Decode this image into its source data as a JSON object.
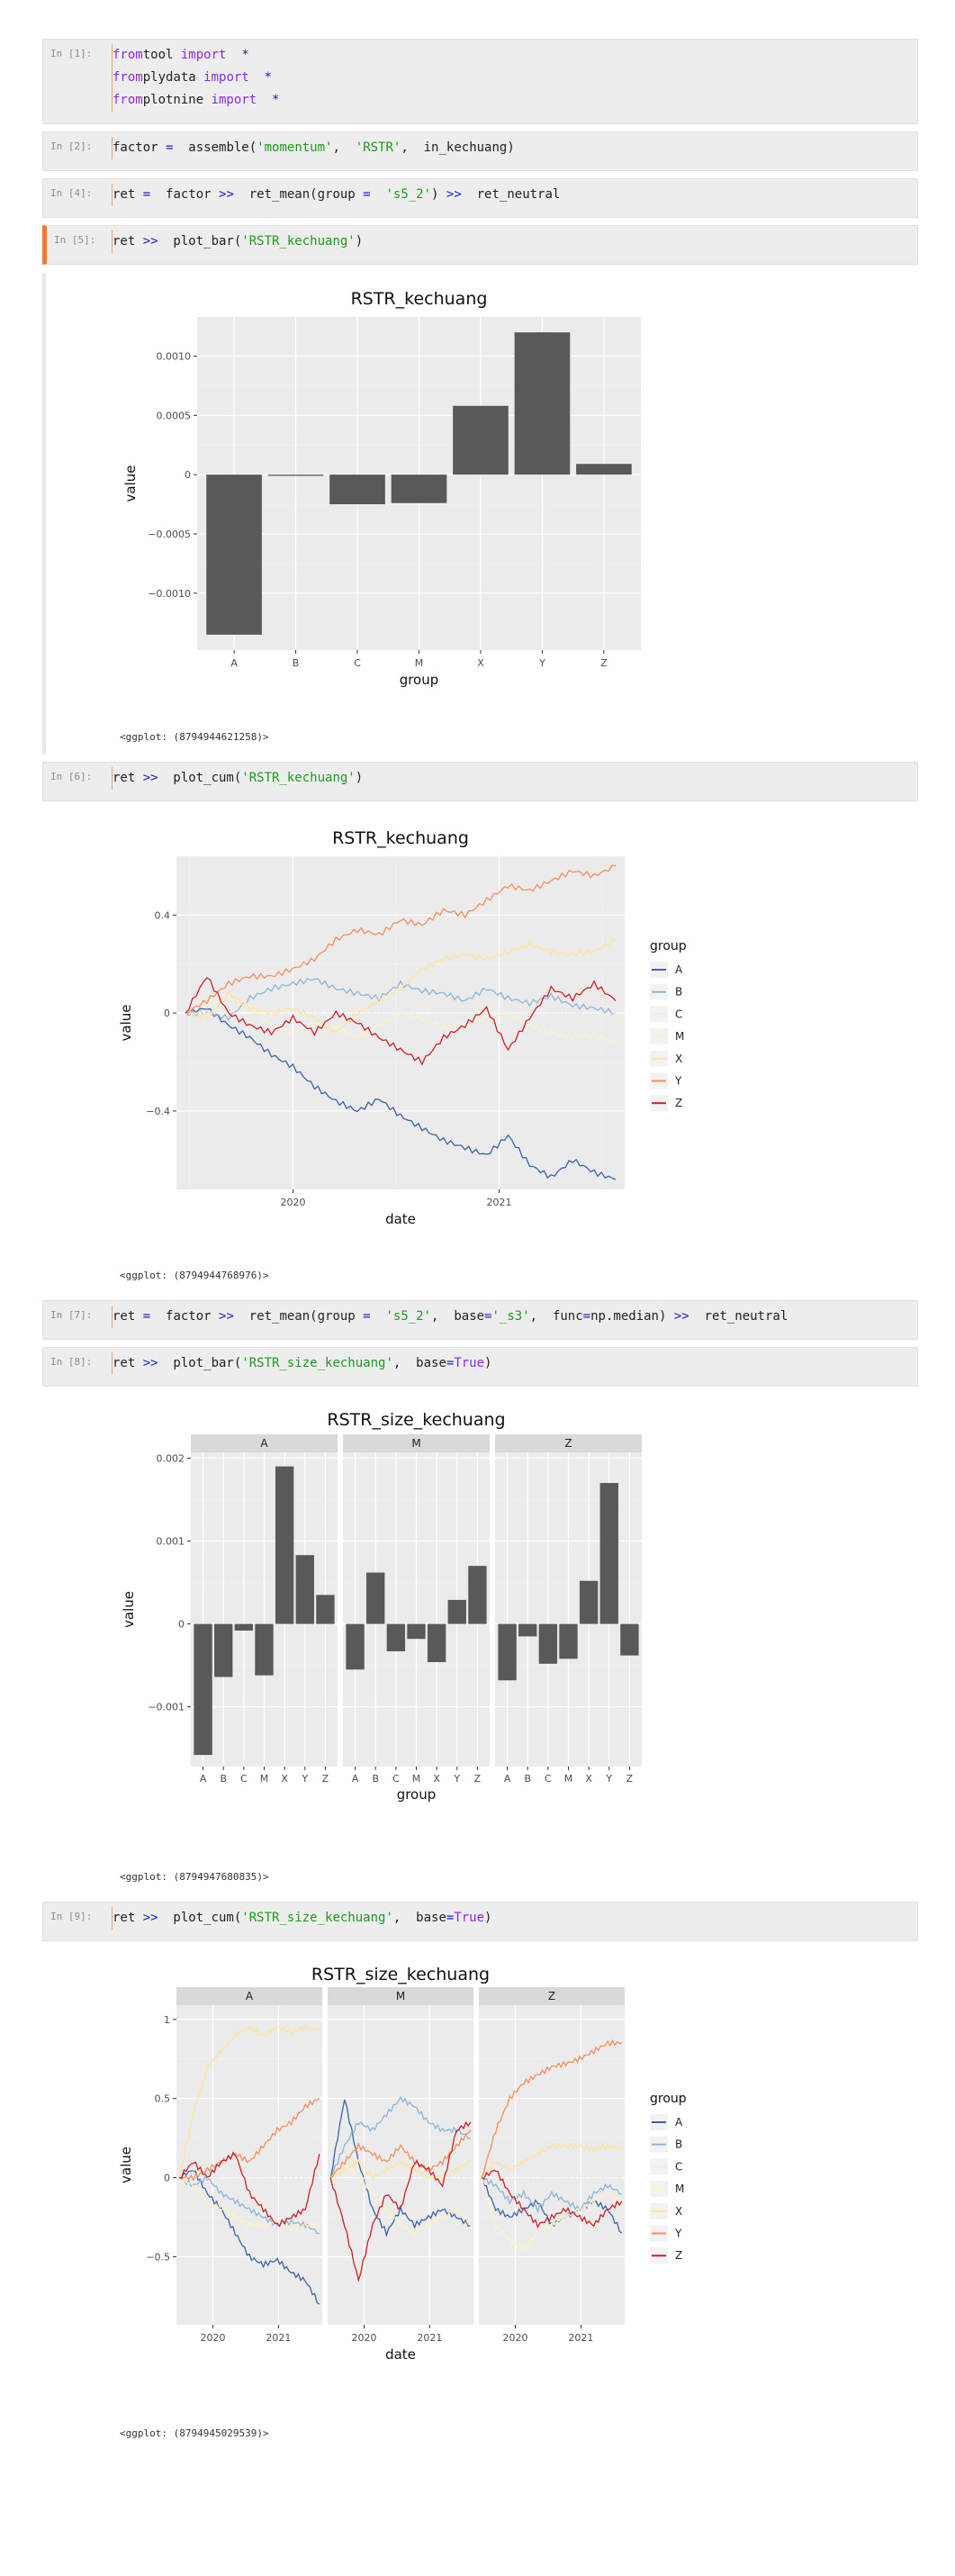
{
  "cells": [
    {
      "prompt": "In [1]:",
      "lines": [
        [
          [
            "kw",
            "from"
          ],
          [
            "",
            "tool "
          ],
          [
            "kw",
            "import"
          ],
          [
            "",
            "  "
          ],
          [
            "op",
            "*"
          ]
        ],
        [
          [
            "kw",
            "from"
          ],
          [
            "",
            "plydata "
          ],
          [
            "kw",
            "import"
          ],
          [
            "",
            "  "
          ],
          [
            "op",
            "*"
          ]
        ],
        [
          [
            "kw",
            "from"
          ],
          [
            "",
            "plotnine "
          ],
          [
            "kw",
            "import"
          ],
          [
            "",
            "  "
          ],
          [
            "op",
            "*"
          ]
        ]
      ]
    },
    {
      "prompt": "In [2]:",
      "lines": [
        [
          [
            "",
            "factor "
          ],
          [
            "op",
            "="
          ],
          [
            "",
            "  assemble("
          ],
          [
            "str",
            "'momentum'"
          ],
          [
            "",
            ",  "
          ],
          [
            "str",
            "'RSTR'"
          ],
          [
            "",
            ",  in_kechuang)"
          ]
        ]
      ]
    },
    {
      "prompt": "In [4]:",
      "lines": [
        [
          [
            "",
            "ret "
          ],
          [
            "op",
            "="
          ],
          [
            "",
            "  factor "
          ],
          [
            "op",
            ">>"
          ],
          [
            "",
            "  ret_mean(group "
          ],
          [
            "op",
            "="
          ],
          [
            "",
            "  "
          ],
          [
            "str",
            "'s5_2'"
          ],
          [
            "",
            ") "
          ],
          [
            "op",
            ">>"
          ],
          [
            "",
            "  ret_neutral"
          ]
        ]
      ]
    },
    {
      "prompt": "In [5]:",
      "lines": [
        [
          [
            "",
            "ret "
          ],
          [
            "op",
            ">>"
          ],
          [
            "",
            "  plot_bar("
          ],
          [
            "str",
            "'RSTR_kechuang'"
          ],
          [
            "",
            ")"
          ]
        ]
      ]
    },
    {
      "prompt": "In [6]:",
      "lines": [
        [
          [
            "",
            "ret "
          ],
          [
            "op",
            ">>"
          ],
          [
            "",
            "  plot_cum("
          ],
          [
            "str",
            "'RSTR_kechuang'"
          ],
          [
            "",
            ")"
          ]
        ]
      ]
    },
    {
      "prompt": "In [7]:",
      "lines": [
        [
          [
            "",
            "ret "
          ],
          [
            "op",
            "="
          ],
          [
            "",
            "  factor "
          ],
          [
            "op",
            ">>"
          ],
          [
            "",
            "  ret_mean(group "
          ],
          [
            "op",
            "="
          ],
          [
            "",
            "  "
          ],
          [
            "str",
            "'s5_2'"
          ],
          [
            "",
            ",  base"
          ],
          [
            "op",
            "="
          ],
          [
            "und",
            "'_s3'"
          ],
          [
            "",
            ",  func"
          ],
          [
            "op",
            "="
          ],
          [
            "",
            "np.median) "
          ],
          [
            "op",
            ">>"
          ],
          [
            "",
            "  ret_neutral"
          ]
        ]
      ]
    },
    {
      "prompt": "In [8]:",
      "lines": [
        [
          [
            "",
            "ret "
          ],
          [
            "op",
            ">>"
          ],
          [
            "",
            "  plot_bar("
          ],
          [
            "str",
            "'RSTR_size_kechuang'"
          ],
          [
            "",
            ",  base"
          ],
          [
            "op",
            "="
          ],
          [
            "tru",
            "True"
          ],
          [
            "",
            ")"
          ]
        ]
      ]
    },
    {
      "prompt": "In [9]:",
      "lines": [
        [
          [
            "",
            "ret "
          ],
          [
            "op",
            ">>"
          ],
          [
            "",
            "  plot_cum("
          ],
          [
            "str",
            "'RSTR_size_kechuang'"
          ],
          [
            "",
            ",  base"
          ],
          [
            "op",
            "="
          ],
          [
            "tru",
            "True"
          ],
          [
            "",
            ")"
          ]
        ]
      ]
    }
  ],
  "outputs": [
    "<ggplot: (8794944621258)>",
    "<ggplot: (8794944768976)>",
    "<ggplot: (8794947680835)>",
    "<ggplot: (8794945029539)>"
  ],
  "legend": {
    "title": "group",
    "items": [
      "A",
      "B",
      "C",
      "M",
      "X",
      "Y",
      "Z"
    ]
  },
  "colors": {
    "A": "#3a63a8",
    "B": "#8db3d6",
    "C": "#ececec",
    "M": "#fdf2c2",
    "X": "#fee59a",
    "Y": "#f68d5c",
    "Z": "#cf1f26",
    "bar": "#595959",
    "panel": "#ebebeb",
    "strip": "#d9d9d9"
  },
  "chart_data": [
    {
      "type": "bar",
      "title": "RSTR_kechuang",
      "xlabel": "group",
      "ylabel": "value",
      "categories": [
        "A",
        "B",
        "C",
        "M",
        "X",
        "Y",
        "Z"
      ],
      "values": [
        -0.00135,
        -1e-05,
        -0.00025,
        -0.00024,
        0.00058,
        0.0012,
        9e-05
      ],
      "ylim": [
        -0.00148,
        0.00133
      ],
      "yticks": [
        -0.001,
        -0.0005,
        0,
        0.0005,
        0.001
      ],
      "ytick_labels": [
        "−0.0010",
        "−0.0005",
        "0",
        "0.0005",
        "0.0010"
      ]
    },
    {
      "type": "line",
      "title": "RSTR_kechuang",
      "xlabel": "date",
      "ylabel": "value",
      "x_range": [
        "2019-07",
        "2021-07"
      ],
      "xticks": [
        "2020",
        "2021"
      ],
      "ylim": [
        -0.72,
        0.64
      ],
      "yticks": [
        -0.4,
        0,
        0.4
      ],
      "ytick_labels": [
        "−0.4",
        "0",
        "0.4"
      ],
      "series": [
        {
          "name": "A",
          "values": [
            0,
            0.02,
            -0.05,
            -0.1,
            -0.17,
            -0.22,
            -0.3,
            -0.36,
            -0.4,
            -0.35,
            -0.42,
            -0.47,
            -0.52,
            -0.55,
            -0.58,
            -0.5,
            -0.62,
            -0.67,
            -0.6,
            -0.65,
            -0.68
          ]
        },
        {
          "name": "B",
          "values": [
            0,
            0.0,
            -0.02,
            0.06,
            0.1,
            0.12,
            0.14,
            0.1,
            0.08,
            0.06,
            0.12,
            0.09,
            0.08,
            0.05,
            0.1,
            0.06,
            0.04,
            0.07,
            0.03,
            0.02,
            0.0
          ]
        },
        {
          "name": "C",
          "values": [
            0,
            0.0,
            0.0,
            0.01,
            0.01,
            0.0,
            0.0,
            0.01,
            0.0,
            0.0,
            0.0,
            -0.01,
            0.0,
            0.0,
            0.0,
            0.0,
            0.0,
            0.0,
            0.0,
            0.0,
            0.0
          ]
        },
        {
          "name": "M",
          "values": [
            0,
            0.04,
            0.06,
            0.03,
            -0.05,
            -0.08,
            -0.04,
            -0.06,
            -0.1,
            -0.05,
            0.0,
            -0.02,
            -0.06,
            -0.04,
            -0.02,
            0.0,
            -0.05,
            -0.08,
            -0.1,
            -0.09,
            -0.12
          ]
        },
        {
          "name": "X",
          "values": [
            0,
            -0.02,
            0.08,
            0.02,
            0.0,
            0.02,
            -0.02,
            -0.08,
            0.0,
            0.05,
            0.1,
            0.18,
            0.22,
            0.24,
            0.22,
            0.25,
            0.28,
            0.25,
            0.24,
            0.25,
            0.3
          ]
        },
        {
          "name": "Y",
          "values": [
            0,
            0.05,
            0.12,
            0.15,
            0.15,
            0.18,
            0.22,
            0.3,
            0.34,
            0.32,
            0.38,
            0.36,
            0.42,
            0.4,
            0.46,
            0.52,
            0.5,
            0.54,
            0.58,
            0.56,
            0.6
          ]
        },
        {
          "name": "Z",
          "values": [
            0,
            0.15,
            0.0,
            -0.05,
            -0.08,
            -0.02,
            -0.08,
            0.0,
            -0.04,
            -0.1,
            -0.15,
            -0.2,
            -0.1,
            -0.05,
            0.02,
            -0.15,
            -0.02,
            0.1,
            0.06,
            0.12,
            0.05
          ]
        }
      ]
    },
    {
      "type": "bar",
      "title": "RSTR_size_kechuang",
      "xlabel": "group",
      "ylabel": "value",
      "facets": [
        "A",
        "M",
        "Z"
      ],
      "categories": [
        "A",
        "B",
        "C",
        "M",
        "X",
        "Y",
        "Z"
      ],
      "panels": [
        {
          "facet": "A",
          "values": [
            -0.00158,
            -0.00064,
            -8e-05,
            -0.00062,
            0.0019,
            0.00083,
            0.00035
          ]
        },
        {
          "facet": "M",
          "values": [
            -0.00055,
            0.00062,
            -0.00033,
            -0.00018,
            -0.00046,
            0.00029,
            0.0007
          ]
        },
        {
          "facet": "Z",
          "values": [
            -0.00068,
            -0.00015,
            -0.00048,
            -0.00042,
            0.00052,
            0.0017,
            -0.00038
          ]
        }
      ],
      "ylim": [
        -0.00172,
        0.00207
      ],
      "yticks": [
        -0.001,
        0,
        0.001,
        0.002
      ],
      "ytick_labels": [
        "−0.001",
        "0",
        "0.001",
        "0.002"
      ]
    },
    {
      "type": "line",
      "title": "RSTR_size_kechuang",
      "xlabel": "date",
      "ylabel": "value",
      "facets": [
        "A",
        "M",
        "Z"
      ],
      "xticks": [
        "2020",
        "2021"
      ],
      "ylim": [
        -0.93,
        1.09
      ],
      "yticks": [
        -0.5,
        0,
        0.5,
        1
      ],
      "ytick_labels": [
        "−0.5",
        "0",
        "0.5",
        "1"
      ],
      "panels": [
        {
          "facet": "A",
          "series": [
            {
              "name": "A",
              "values": [
                0,
                0.05,
                -0.1,
                -0.2,
                -0.35,
                -0.5,
                -0.55,
                -0.52,
                -0.6,
                -0.65,
                -0.8
              ]
            },
            {
              "name": "B",
              "values": [
                0,
                -0.05,
                0.0,
                -0.1,
                -0.15,
                -0.2,
                -0.25,
                -0.3,
                -0.28,
                -0.3,
                -0.35
              ]
            },
            {
              "name": "C",
              "values": [
                0,
                0.02,
                0.01,
                0.0,
                0.0,
                -0.01,
                0.0,
                0.0,
                0.01,
                0.0,
                0.0
              ]
            },
            {
              "name": "M",
              "values": [
                0,
                -0.05,
                -0.15,
                -0.2,
                -0.25,
                -0.3,
                -0.3,
                -0.28,
                -0.32,
                -0.3,
                -0.3
              ]
            },
            {
              "name": "X",
              "values": [
                0,
                0.4,
                0.7,
                0.8,
                0.9,
                0.95,
                0.9,
                0.95,
                0.92,
                0.95,
                0.93
              ]
            },
            {
              "name": "Y",
              "values": [
                0,
                0.0,
                0.05,
                0.1,
                0.15,
                0.1,
                0.2,
                0.3,
                0.35,
                0.45,
                0.5
              ]
            },
            {
              "name": "Z",
              "values": [
                0,
                0.1,
                0.0,
                0.1,
                0.15,
                -0.1,
                -0.2,
                -0.3,
                -0.25,
                -0.2,
                0.15
              ]
            }
          ]
        },
        {
          "facet": "M",
          "series": [
            {
              "name": "A",
              "values": [
                0,
                0.5,
                0.1,
                -0.2,
                -0.35,
                -0.2,
                -0.3,
                -0.25,
                -0.2,
                -0.25,
                -0.3
              ]
            },
            {
              "name": "B",
              "values": [
                0,
                0.2,
                0.35,
                0.3,
                0.4,
                0.5,
                0.45,
                0.35,
                0.3,
                0.3,
                0.25
              ]
            },
            {
              "name": "C",
              "values": [
                0,
                0.02,
                0.0,
                0.01,
                0.0,
                0.0,
                0.01,
                0.0,
                0.0,
                0.01,
                0.0
              ]
            },
            {
              "name": "M",
              "values": [
                0,
                0.1,
                0.0,
                -0.1,
                -0.2,
                -0.3,
                -0.35,
                -0.3,
                -0.25,
                -0.2,
                -0.3
              ]
            },
            {
              "name": "X",
              "values": [
                0,
                0.05,
                0.1,
                0.0,
                0.05,
                0.1,
                0.05,
                0.0,
                0.0,
                0.05,
                0.1
              ]
            },
            {
              "name": "Y",
              "values": [
                0,
                0.1,
                0.2,
                0.15,
                0.1,
                0.2,
                0.1,
                0.05,
                0.1,
                0.2,
                0.3
              ]
            },
            {
              "name": "Z",
              "values": [
                0,
                -0.3,
                -0.65,
                -0.3,
                -0.1,
                -0.2,
                0.1,
                0.05,
                -0.05,
                0.3,
                0.35
              ]
            }
          ]
        },
        {
          "facet": "Z",
          "series": [
            {
              "name": "A",
              "values": [
                0,
                -0.2,
                -0.25,
                -0.2,
                -0.15,
                -0.3,
                -0.25,
                -0.2,
                -0.15,
                -0.2,
                -0.35
              ]
            },
            {
              "name": "B",
              "values": [
                0,
                -0.05,
                -0.15,
                -0.1,
                -0.2,
                -0.1,
                -0.15,
                -0.2,
                -0.1,
                -0.05,
                -0.1
              ]
            },
            {
              "name": "C",
              "values": [
                0,
                0.01,
                0.0,
                0.0,
                0.01,
                0.0,
                0.0,
                0.01,
                0.0,
                0.0,
                0.0
              ]
            },
            {
              "name": "M",
              "values": [
                0,
                -0.3,
                -0.4,
                -0.45,
                -0.35,
                -0.3,
                -0.25,
                -0.2,
                -0.15,
                -0.1,
                -0.15
              ]
            },
            {
              "name": "X",
              "values": [
                0,
                0.1,
                0.05,
                0.1,
                0.15,
                0.2,
                0.2,
                0.2,
                0.18,
                0.2,
                0.18
              ]
            },
            {
              "name": "Y",
              "values": [
                0,
                0.3,
                0.5,
                0.6,
                0.65,
                0.7,
                0.72,
                0.75,
                0.8,
                0.85,
                0.85
              ]
            },
            {
              "name": "Z",
              "values": [
                0,
                0.05,
                -0.1,
                -0.2,
                -0.3,
                -0.25,
                -0.2,
                -0.25,
                -0.3,
                -0.2,
                -0.15
              ]
            }
          ]
        }
      ]
    }
  ]
}
